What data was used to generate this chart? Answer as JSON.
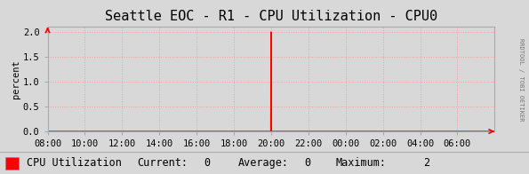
{
  "title": "Seattle EOC - R1 - CPU Utilization - CPU0",
  "ylabel": "percent",
  "fig_bg_color": "#d8d8d8",
  "plot_bg_color": "#d8d8d8",
  "grid_color": "#ff9999",
  "x_ticks_labels": [
    "08:00",
    "10:00",
    "12:00",
    "14:00",
    "16:00",
    "18:00",
    "20:00",
    "22:00",
    "00:00",
    "02:00",
    "04:00",
    "06:00"
  ],
  "x_ticks_positions": [
    0,
    2,
    4,
    6,
    8,
    10,
    12,
    14,
    16,
    18,
    20,
    22
  ],
  "spike_x": 12,
  "spike_y": 2.0,
  "ylim": [
    0.0,
    2.1
  ],
  "yticks": [
    0.0,
    0.5,
    1.0,
    1.5,
    2.0
  ],
  "line_color": "#ff0000",
  "legend_label": "CPU Utilization",
  "legend_current": "0",
  "legend_average": "0",
  "legend_maximum": "2",
  "title_fontsize": 11,
  "axis_fontsize": 7.5,
  "legend_fontsize": 8.5,
  "right_label": "RRDTOOL / TOBI OETIKER",
  "arrow_color": "#ff0000",
  "legend_bg": "#ffffff"
}
